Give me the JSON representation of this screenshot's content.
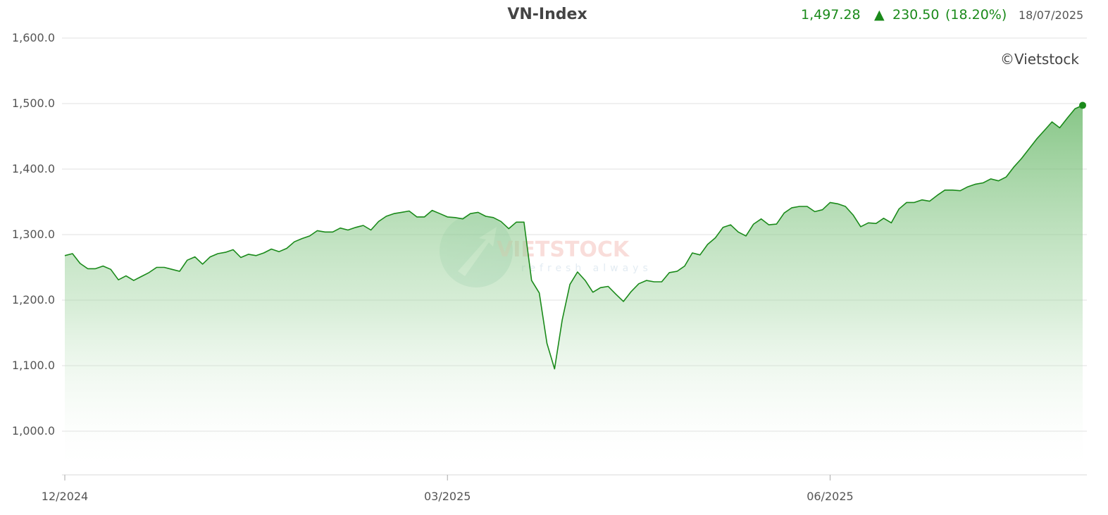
{
  "header": {
    "title": "VN-Index",
    "last_value": "1,497.28",
    "change_arrow": "▲",
    "change": "230.50",
    "change_pct": "(18.20%)",
    "date": "18/07/2025",
    "credit": "©Vietstock"
  },
  "watermark": {
    "brand": "VIETSTOCK",
    "tagline": "refresh always"
  },
  "colors": {
    "line": "#1a8a1a",
    "header_value": "#1a8a1a",
    "grid": "#e0e0e0"
  },
  "chart_data": {
    "type": "area",
    "title": "VN-Index",
    "xlabel": "",
    "ylabel": "",
    "ylim": [
      932,
      1602
    ],
    "y_ticks": [
      1000,
      1100,
      1200,
      1300,
      1400,
      1500,
      1600
    ],
    "y_tick_labels": [
      "1,000.0",
      "1,100.0",
      "1,200.0",
      "1,300.0",
      "1,400.0",
      "1,500.0",
      "1,600.0"
    ],
    "x_tick_labels": [
      "12/2024",
      "03/2025",
      "06/2025"
    ],
    "x_tick_index": [
      0,
      50,
      100
    ],
    "grid": true,
    "series": [
      {
        "values": [
          1268,
          1271,
          1256,
          1248,
          1248,
          1252,
          1247,
          1231,
          1237,
          1230,
          1236,
          1242,
          1250,
          1250,
          1247,
          1244,
          1261,
          1266,
          1255,
          1266,
          1271,
          1273,
          1277,
          1265,
          1270,
          1268,
          1272,
          1278,
          1274,
          1279,
          1289,
          1294,
          1298,
          1306,
          1304,
          1304,
          1310,
          1307,
          1311,
          1314,
          1307,
          1320,
          1328,
          1332,
          1334,
          1336,
          1327,
          1327,
          1337,
          1332,
          1327,
          1326,
          1324,
          1332,
          1334,
          1328,
          1326,
          1320,
          1309,
          1319,
          1319,
          1230,
          1211,
          1134,
          1095,
          1170,
          1224,
          1243,
          1230,
          1212,
          1219,
          1221,
          1209,
          1198,
          1213,
          1225,
          1230,
          1228,
          1228,
          1242,
          1244,
          1252,
          1272,
          1269,
          1285,
          1295,
          1311,
          1315,
          1304,
          1298,
          1316,
          1324,
          1315,
          1316,
          1333,
          1341,
          1343,
          1343,
          1335,
          1338,
          1349,
          1347,
          1343,
          1330,
          1312,
          1318,
          1317,
          1325,
          1318,
          1339,
          1349,
          1349,
          1353,
          1351,
          1360,
          1368,
          1368,
          1367,
          1373,
          1377,
          1379,
          1385,
          1382,
          1388,
          1403,
          1416,
          1431,
          1446,
          1459,
          1472,
          1463,
          1478,
          1492,
          1497.28
        ]
      }
    ]
  }
}
